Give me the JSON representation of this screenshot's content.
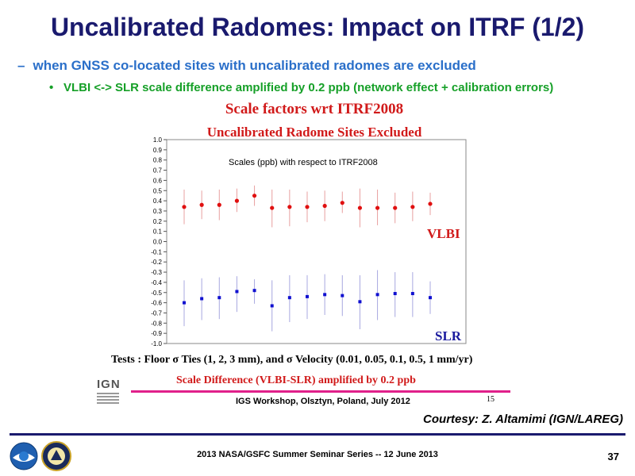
{
  "slide": {
    "title": "Uncalibrated Radomes: Impact on ITRF (1/2)",
    "bullet1_marker": "–",
    "bullet1": "when GNSS co-located sites with uncalibrated radomes are excluded",
    "bullet2_marker": "•",
    "bullet2": "VLBI <-> SLR scale difference amplified by 0.2 ppb (network effect + calibration errors)",
    "chart_title": "Scale factors wrt ITRF2008",
    "chart_subtitle": "Uncalibrated Radome Sites Excluded",
    "tests_text": "Tests : Floor σ Ties (1, 2, 3 mm), and σ Velocity (0.01, 0.05, 0.1, 0.5, 1 mm/yr)",
    "scale_difference_text": "Scale Difference (VLBI-SLR) amplified by 0.2 ppb",
    "ign_logo_text": "IGN",
    "small_page_number": "15",
    "workshop_text": "IGS Workshop, Olsztyn, Poland, July 2012",
    "courtesy": "Courtesy: Z. Altamimi (IGN/LAREG)",
    "footer": "2013 NASA/GSFC Summer Seminar Series -- 12 June 2013",
    "page_number": "37"
  },
  "chart_data": {
    "type": "scatter",
    "annotation": "Scales (ppb) with respect to ITRF2008",
    "ylim": [
      -1.0,
      1.0
    ],
    "yticks": [
      "1.0",
      "0.9",
      "0.8",
      "0.7",
      "0.6",
      "0.5",
      "0.4",
      "0.3",
      "0.2",
      "0.1",
      "0.0",
      "-0.1",
      "-0.2",
      "-0.3",
      "-0.4",
      "-0.5",
      "-0.6",
      "-0.7",
      "-0.8",
      "-0.9",
      "-1.0"
    ],
    "grid": false,
    "x": [
      1,
      2,
      3,
      4,
      5,
      6,
      7,
      8,
      9,
      10,
      11,
      12,
      13,
      14,
      15
    ],
    "series": [
      {
        "name": "VLBI",
        "color": "#e01010",
        "label_color": "#d11a1a",
        "values": [
          0.34,
          0.36,
          0.36,
          0.4,
          0.45,
          0.33,
          0.34,
          0.34,
          0.35,
          0.38,
          0.33,
          0.33,
          0.33,
          0.34,
          0.37
        ],
        "err_low": [
          0.17,
          0.22,
          0.21,
          0.29,
          0.35,
          0.14,
          0.15,
          0.19,
          0.2,
          0.28,
          0.14,
          0.16,
          0.18,
          0.2,
          0.26
        ],
        "err_high": [
          0.51,
          0.5,
          0.51,
          0.52,
          0.55,
          0.51,
          0.51,
          0.49,
          0.5,
          0.49,
          0.52,
          0.51,
          0.48,
          0.49,
          0.48
        ]
      },
      {
        "name": "SLR",
        "color": "#1010d0",
        "label_color": "#1a1a9e",
        "values": [
          -0.6,
          -0.56,
          -0.55,
          -0.49,
          -0.48,
          -0.63,
          -0.55,
          -0.54,
          -0.52,
          -0.53,
          -0.59,
          -0.52,
          -0.51,
          -0.51,
          -0.55
        ],
        "err_low": [
          -0.83,
          -0.77,
          -0.76,
          -0.69,
          -0.61,
          -0.88,
          -0.79,
          -0.76,
          -0.72,
          -0.73,
          -0.86,
          -0.77,
          -0.74,
          -0.74,
          -0.71
        ],
        "err_high": [
          -0.38,
          -0.36,
          -0.35,
          -0.34,
          -0.37,
          -0.38,
          -0.33,
          -0.33,
          -0.32,
          -0.33,
          -0.33,
          -0.28,
          -0.3,
          -0.3,
          -0.39
        ]
      }
    ]
  }
}
